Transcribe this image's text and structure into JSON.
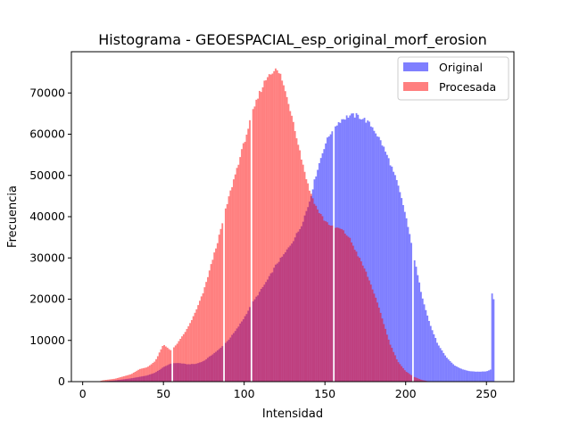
{
  "chart_data": {
    "type": "bar",
    "title": "Histograma - GEOESPACIAL_esp_original_morf_erosion",
    "xlabel": "Intensidad",
    "ylabel": "Frecuencia",
    "xlim": [
      -7,
      267
    ],
    "ylim": [
      0,
      80000
    ],
    "xticks": [
      0,
      50,
      100,
      150,
      200,
      250
    ],
    "yticks": [
      0,
      10000,
      20000,
      30000,
      40000,
      50000,
      60000,
      70000
    ],
    "grid": false,
    "legend_position": "top-right",
    "bin_width": 1,
    "series": [
      {
        "name": "Original",
        "color": "#0000ff",
        "alpha": 0.5,
        "anchors": [
          [
            0,
            0
          ],
          [
            10,
            0
          ],
          [
            20,
            300
          ],
          [
            30,
            800
          ],
          [
            40,
            1500
          ],
          [
            45,
            2200
          ],
          [
            50,
            3500
          ],
          [
            55,
            4500
          ],
          [
            60,
            4500
          ],
          [
            65,
            4200
          ],
          [
            70,
            4300
          ],
          [
            75,
            5000
          ],
          [
            80,
            6500
          ],
          [
            85,
            8000
          ],
          [
            90,
            10000
          ],
          [
            95,
            12500
          ],
          [
            100,
            15500
          ],
          [
            105,
            19000
          ],
          [
            110,
            22000
          ],
          [
            115,
            25000
          ],
          [
            120,
            28500
          ],
          [
            125,
            31000
          ],
          [
            130,
            34000
          ],
          [
            135,
            37500
          ],
          [
            140,
            43000
          ],
          [
            145,
            51000
          ],
          [
            150,
            57500
          ],
          [
            155,
            61500
          ],
          [
            160,
            63500
          ],
          [
            165,
            64500
          ],
          [
            170,
            64500
          ],
          [
            175,
            63500
          ],
          [
            180,
            61500
          ],
          [
            185,
            58000
          ],
          [
            190,
            53500
          ],
          [
            195,
            48000
          ],
          [
            200,
            40500
          ],
          [
            205,
            30500
          ],
          [
            210,
            21000
          ],
          [
            215,
            14000
          ],
          [
            220,
            9000
          ],
          [
            225,
            6000
          ],
          [
            230,
            4000
          ],
          [
            235,
            3000
          ],
          [
            240,
            2500
          ],
          [
            245,
            2400
          ],
          [
            250,
            2500
          ],
          [
            253,
            3000
          ],
          [
            254,
            40000
          ],
          [
            255,
            0
          ]
        ],
        "zero_bins": [
          55,
          87,
          104,
          155,
          204
        ]
      },
      {
        "name": "Procesada",
        "color": "#ff0000",
        "alpha": 0.5,
        "anchors": [
          [
            0,
            0
          ],
          [
            10,
            0
          ],
          [
            12,
            300
          ],
          [
            20,
            700
          ],
          [
            30,
            1800
          ],
          [
            35,
            3000
          ],
          [
            40,
            3500
          ],
          [
            45,
            5000
          ],
          [
            50,
            9000
          ],
          [
            55,
            7500
          ],
          [
            60,
            10000
          ],
          [
            65,
            13000
          ],
          [
            70,
            17000
          ],
          [
            75,
            22000
          ],
          [
            80,
            29000
          ],
          [
            85,
            36000
          ],
          [
            90,
            44000
          ],
          [
            95,
            51000
          ],
          [
            100,
            58000
          ],
          [
            105,
            65000
          ],
          [
            110,
            70500
          ],
          [
            115,
            74500
          ],
          [
            118,
            75500
          ],
          [
            120,
            75500
          ],
          [
            123,
            74000
          ],
          [
            125,
            71000
          ],
          [
            130,
            64000
          ],
          [
            135,
            55000
          ],
          [
            140,
            47000
          ],
          [
            145,
            42000
          ],
          [
            150,
            39000
          ],
          [
            155,
            37500
          ],
          [
            160,
            37000
          ],
          [
            165,
            35000
          ],
          [
            170,
            31000
          ],
          [
            175,
            27000
          ],
          [
            180,
            22000
          ],
          [
            185,
            16000
          ],
          [
            190,
            9500
          ],
          [
            195,
            5000
          ],
          [
            200,
            2500
          ],
          [
            205,
            1200
          ],
          [
            210,
            400
          ],
          [
            215,
            0
          ],
          [
            255,
            0
          ]
        ],
        "zero_bins": [
          55,
          87,
          104,
          155,
          204
        ]
      }
    ]
  }
}
